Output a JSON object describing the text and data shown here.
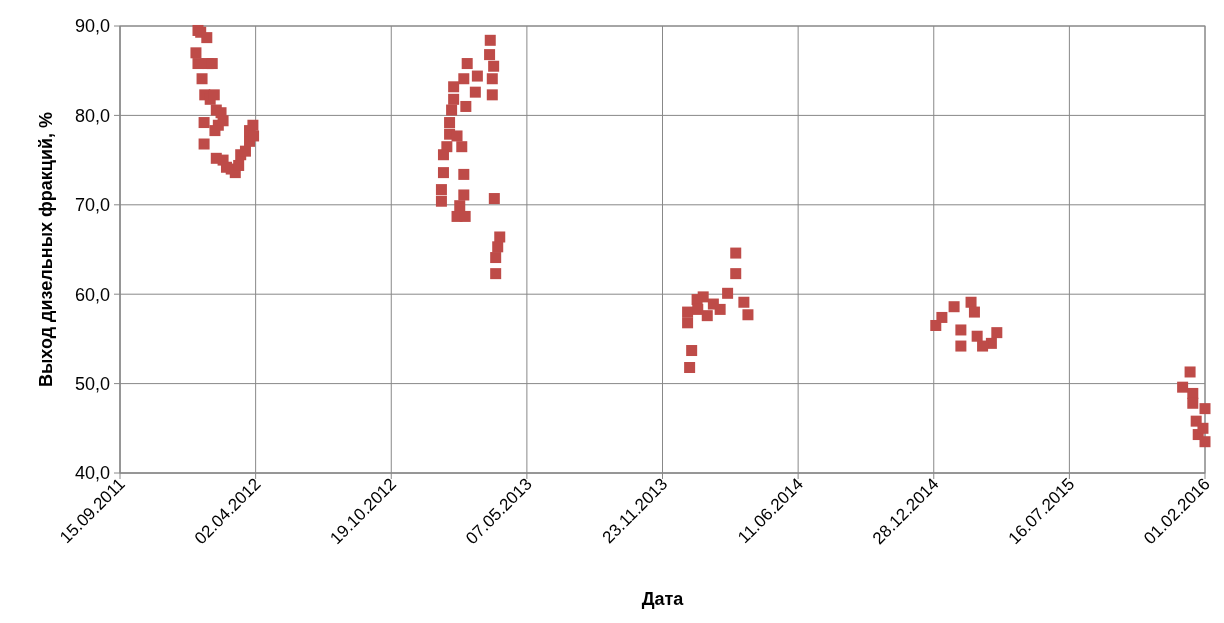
{
  "chart_data": {
    "type": "scatter",
    "xlabel": "Дата",
    "ylabel": "Выход дизельных фракций, %",
    "marker": "square",
    "grid": true,
    "xlim": [
      "2011-09-15",
      "2016-02-01"
    ],
    "xticks": [
      {
        "value": "2011-09-15",
        "label": "15.09.2011"
      },
      {
        "value": "2012-04-02",
        "label": "02.04.2012"
      },
      {
        "value": "2012-10-19",
        "label": "19.10.2012"
      },
      {
        "value": "2013-05-07",
        "label": "07.05.2013"
      },
      {
        "value": "2013-11-23",
        "label": "23.11.2013"
      },
      {
        "value": "2014-06-11",
        "label": "11.06.2014"
      },
      {
        "value": "2014-12-28",
        "label": "28.12.2014"
      },
      {
        "value": "2015-07-16",
        "label": "16.07.2015"
      },
      {
        "value": "2016-02-01",
        "label": "01.02.2016"
      }
    ],
    "ylim": [
      40,
      90
    ],
    "yticks": [
      {
        "value": 40,
        "label": "40,0"
      },
      {
        "value": 50,
        "label": "50,0"
      },
      {
        "value": 60,
        "label": "60,0"
      },
      {
        "value": 70,
        "label": "70,0"
      },
      {
        "value": 80,
        "label": "80,0"
      },
      {
        "value": 90,
        "label": "90,0"
      }
    ],
    "series": [
      {
        "color": "#be4b48",
        "x": [
          "2012-01-08",
          "2012-01-12",
          "2012-01-05",
          "2012-01-08",
          "2012-01-14",
          "2012-01-21",
          "2012-01-23",
          "2012-01-29",
          "2012-01-18",
          "2012-01-26",
          "2012-02-01",
          "2012-02-04",
          "2012-02-07",
          "2012-02-11",
          "2012-02-14",
          "2012-01-17",
          "2012-01-17",
          "2012-02-02",
          "2012-02-04",
          "2012-02-14",
          "2012-02-19",
          "2012-02-26",
          "2012-03-03",
          "2012-03-08",
          "2012-03-11",
          "2012-03-18",
          "2012-03-24",
          "2012-03-24",
          "2012-03-29",
          "2012-03-30",
          "2013-03-14",
          "2013-03-13",
          "2013-03-19",
          "2013-02-08",
          "2013-03-17",
          "2013-03-17",
          "2013-02-23",
          "2013-02-20",
          "2013-02-03",
          "2013-01-19",
          "2013-01-19",
          "2013-02-06",
          "2013-01-16",
          "2013-01-13",
          "2013-01-13",
          "2013-01-24",
          "2013-01-09",
          "2013-01-31",
          "2013-01-04",
          "2013-01-04",
          "2013-02-03",
          "2013-01-01",
          "2013-01-01",
          "2013-02-03",
          "2013-01-28",
          "2013-01-24",
          "2013-02-05",
          "2013-03-20",
          "2013-03-28",
          "2013-03-25",
          "2013-03-22",
          "2013-03-22",
          "2014-03-11",
          "2014-03-11",
          "2014-03-29",
          "2014-03-23",
          "2014-02-27",
          "2014-02-06",
          "2014-01-22",
          "2014-01-13",
          "2013-12-30",
          "2013-12-30",
          "2014-01-28",
          "2014-02-16",
          "2014-01-05",
          "2014-01-02",
          "2014-01-14",
          "2014-12-31",
          "2015-01-09",
          "2015-01-27",
          "2015-02-21",
          "2015-02-26",
          "2015-02-06",
          "2015-02-06",
          "2015-03-02",
          "2015-03-31",
          "2015-03-23",
          "2015-03-10",
          "2016-01-10",
          "2015-12-30",
          "2016-01-14",
          "2016-01-14",
          "2016-02-01",
          "2016-01-19",
          "2016-01-22",
          "2016-02-01",
          "2016-01-29"
        ],
        "values": [
          89.5,
          89.3,
          87.0,
          85.8,
          84.1,
          88.7,
          85.8,
          85.8,
          82.3,
          81.8,
          82.3,
          80.6,
          78.9,
          80.3,
          79.4,
          79.2,
          76.8,
          78.3,
          75.2,
          75.0,
          74.2,
          74.0,
          73.6,
          74.4,
          75.6,
          76.0,
          77.1,
          78.3,
          78.9,
          77.7,
          88.4,
          86.8,
          85.5,
          85.8,
          84.1,
          82.3,
          84.4,
          82.6,
          84.1,
          83.2,
          81.8,
          81.0,
          80.6,
          79.2,
          77.9,
          77.7,
          76.5,
          76.5,
          75.6,
          73.6,
          73.4,
          71.7,
          70.4,
          71.1,
          69.9,
          68.7,
          68.7,
          70.7,
          66.4,
          65.3,
          64.1,
          62.3,
          64.6,
          62.3,
          57.7,
          59.1,
          60.1,
          58.9,
          59.7,
          59.4,
          58.0,
          56.8,
          57.6,
          58.3,
          53.7,
          51.8,
          58.3,
          56.5,
          57.4,
          58.6,
          59.1,
          58.0,
          56.0,
          54.2,
          55.3,
          55.7,
          54.5,
          54.2,
          51.3,
          49.6,
          48.9,
          47.8,
          47.2,
          45.8,
          44.3,
          43.5,
          45.0
        ]
      }
    ]
  }
}
